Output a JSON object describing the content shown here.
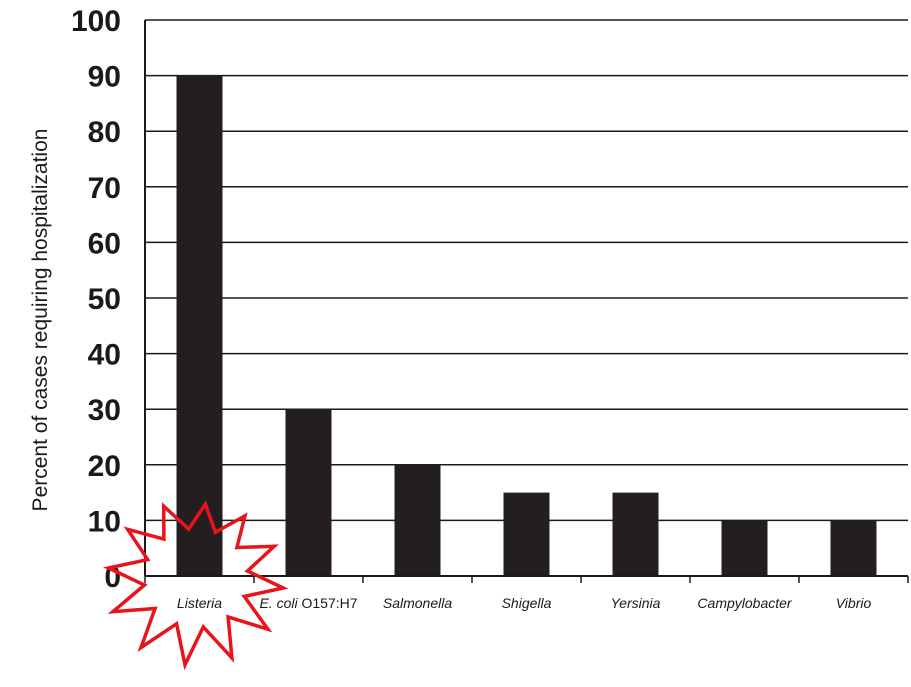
{
  "chart_data": {
    "type": "bar",
    "categories": [
      "Listeria",
      "E. coli O157:H7",
      "Salmonella",
      "Shigella",
      "Yersinia",
      "Campylobacter",
      "Vibrio"
    ],
    "values": [
      90,
      30,
      20,
      15,
      15,
      10,
      10
    ],
    "title": "",
    "xlabel": "",
    "ylabel": "Percent of cases requiring hospitalization",
    "ylim": [
      0,
      100
    ],
    "yticks": [
      0,
      10,
      20,
      30,
      40,
      50,
      60,
      70,
      80,
      90,
      100
    ],
    "grid": "horizontal",
    "bar_color": "#231f20",
    "annotation": {
      "shape": "starburst",
      "target_category": "Listeria",
      "stroke_color": "#e8141b",
      "fill_color": "#ffffff"
    }
  }
}
